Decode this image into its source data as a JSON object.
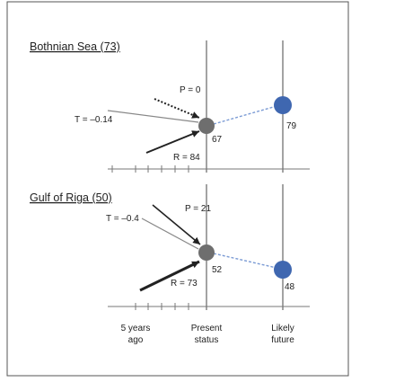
{
  "panels": [
    {
      "title": "Bothnian Sea (73)",
      "p_label": "P = 0",
      "t_label": "T = –0.14",
      "r_label": "R = 84",
      "present_value": "67",
      "future_value": "79"
    },
    {
      "title": "Gulf of Riga (50)",
      "p_label": "P = 21",
      "t_label": "T = –0.4",
      "r_label": "R = 73",
      "present_value": "52",
      "future_value": "48"
    }
  ],
  "axis_labels": {
    "ago_line1": "5 years",
    "ago_line2": "ago",
    "present_line1": "Present",
    "present_line2": "status",
    "future_line1": "Likely",
    "future_line2": "future"
  },
  "colors": {
    "present_dot": "#6e6e6e",
    "future_dot": "#3f67b0",
    "dotted_link": "#7a9ad4"
  }
}
